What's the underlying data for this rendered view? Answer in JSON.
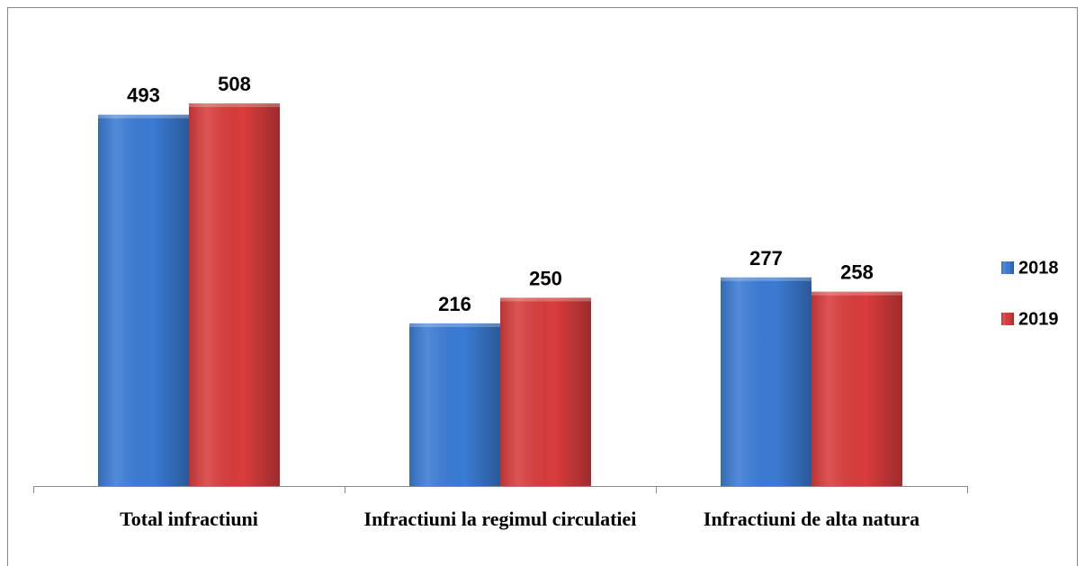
{
  "chart_data": {
    "type": "bar",
    "categories": [
      "Total infractiuni",
      "Infractiuni la regimul circulatiei",
      "Infractiuni de alta natura"
    ],
    "series": [
      {
        "name": "2018",
        "color": "#3b7bd4",
        "values": [
          493,
          216,
          277
        ]
      },
      {
        "name": "2019",
        "color": "#d93c3c",
        "values": [
          508,
          250,
          258
        ]
      }
    ],
    "ylim": [
      0,
      600
    ],
    "legend": "right"
  }
}
